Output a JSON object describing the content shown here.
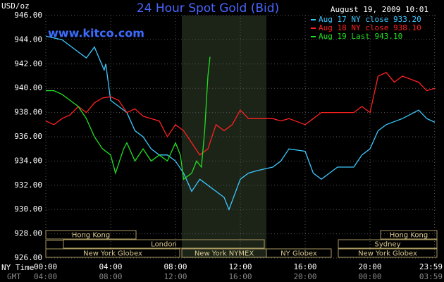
{
  "chart_data": {
    "type": "line",
    "title": "24 Hour Spot Gold (Bid)",
    "y_label": "USD/oz",
    "timestamp": "August 19, 2009 10:01",
    "watermark": "www.kitco.com",
    "xlim": [
      0,
      24
    ],
    "ylim": [
      926,
      946
    ],
    "grid": true,
    "legend": "top-right",
    "yticks": [
      {
        "value": 926,
        "label": "926.00"
      },
      {
        "value": 928,
        "label": "928.00"
      },
      {
        "value": 930,
        "label": "930.00"
      },
      {
        "value": 932,
        "label": "932.00"
      },
      {
        "value": 934,
        "label": "934.00"
      },
      {
        "value": 936,
        "label": "936.00"
      },
      {
        "value": 938,
        "label": "938.00"
      },
      {
        "value": 940,
        "label": "940.00"
      },
      {
        "value": 942,
        "label": "942.00"
      },
      {
        "value": 944,
        "label": "944.00"
      },
      {
        "value": 946,
        "label": "946.00"
      }
    ],
    "xticks": [
      {
        "value": 0,
        "label": "00:00"
      },
      {
        "value": 4,
        "label": "04:00"
      },
      {
        "value": 8,
        "label": "08:00"
      },
      {
        "value": 12,
        "label": "12:00"
      },
      {
        "value": 16,
        "label": "16:00"
      },
      {
        "value": 20,
        "label": "20:00"
      },
      {
        "value": 23.983,
        "label": "23:59"
      }
    ],
    "x_row_label": "NY Time",
    "x2_row_label": "GMT",
    "x2_labels": [
      "04:00",
      "08:00",
      "12:00",
      "16:00",
      "20:00",
      "00:00",
      "03:59"
    ],
    "sessions": [
      "Hong Kong",
      "London",
      "New York Globex",
      "New York NYMEX",
      "NY Globex",
      "Sydney",
      "Hong Kong",
      "New York Globex"
    ],
    "series": [
      {
        "name": "Aug 17 NY close 933.20",
        "color": "#3cc8ff",
        "x": [
          0,
          1,
          1.5,
          2,
          2.5,
          3,
          3.6,
          3.7,
          4,
          4.5,
          5,
          5.5,
          6,
          6.5,
          7,
          7.5,
          8,
          8.5,
          9,
          9.5,
          10,
          10.5,
          11,
          11.3,
          12,
          12.5,
          13,
          14,
          14.5,
          15,
          16,
          16.5,
          17,
          17.5,
          18,
          19,
          19.5,
          20,
          20.5,
          21,
          22,
          23,
          23.5,
          24
        ],
        "values": [
          944.3,
          944,
          943.5,
          943,
          942.5,
          943.4,
          941.5,
          942,
          939,
          938.5,
          938,
          936.5,
          936,
          935,
          934.5,
          934.5,
          934,
          933,
          931.5,
          932.5,
          932,
          931.5,
          931,
          930,
          932.5,
          933,
          933.2,
          933.5,
          934,
          935,
          934.8,
          933,
          932.5,
          933,
          933.5,
          933.5,
          934.5,
          935,
          936.5,
          937,
          937.5,
          938.2,
          937.5,
          937.2
        ]
      },
      {
        "name": "Aug 18 NY close 938.10",
        "color": "#ff2020",
        "x": [
          0,
          0.5,
          1,
          1.5,
          2,
          2.5,
          3,
          3.5,
          4,
          4.5,
          5,
          5.5,
          6,
          6.5,
          7,
          7.5,
          8,
          8.5,
          9,
          9.5,
          10,
          10.5,
          11,
          11.5,
          12,
          12.5,
          13,
          14,
          14.5,
          15,
          16,
          16.5,
          17,
          18,
          19,
          19.5,
          20,
          20.5,
          21,
          21.5,
          22,
          23,
          23.5,
          24
        ],
        "values": [
          937.3,
          937,
          937.5,
          937.8,
          938.5,
          938,
          938.8,
          939.2,
          939.3,
          939,
          938,
          938.3,
          937.7,
          937.5,
          937.3,
          936,
          937,
          936.5,
          935.5,
          934.5,
          935,
          937,
          936.5,
          937,
          938.2,
          937.5,
          937.5,
          937.5,
          937.3,
          937.5,
          937,
          937.5,
          938,
          938,
          938,
          938.5,
          938,
          941,
          941.3,
          940.5,
          941,
          940.5,
          939.8,
          940
        ]
      },
      {
        "name": "Aug 19 Last 943.10",
        "color": "#20e020",
        "x": [
          0,
          0.5,
          1,
          1.5,
          2,
          2.5,
          3,
          3.5,
          4,
          4.3,
          4.8,
          5,
          5.5,
          6,
          6.5,
          7,
          7.5,
          8,
          8.3,
          8.5,
          9,
          9.3,
          9.6,
          9.8,
          10,
          10.13
        ],
        "values": [
          939.8,
          939.8,
          939.5,
          939,
          938.5,
          937.5,
          936,
          935,
          934.5,
          933,
          935,
          935.5,
          934,
          935,
          934,
          934.5,
          934,
          935.5,
          934.5,
          932.5,
          933,
          934,
          933.5,
          936.5,
          941,
          942.6
        ]
      }
    ]
  }
}
